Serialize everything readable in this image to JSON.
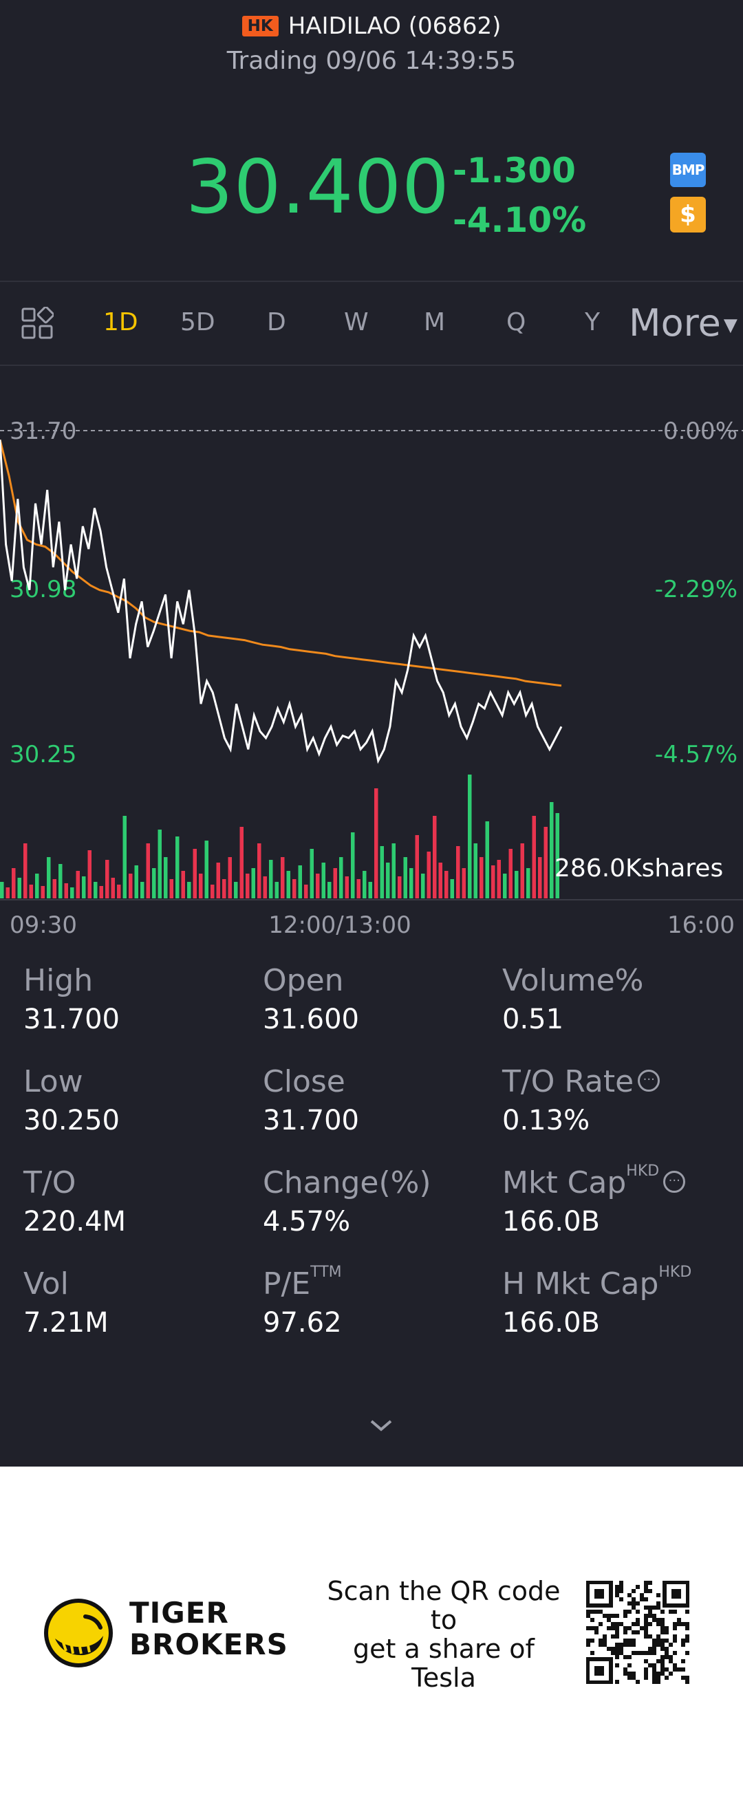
{
  "header": {
    "market": "HK",
    "stock_name": "HAIDILAO (06862)",
    "status": "Trading 09/06 14:39:55"
  },
  "quote": {
    "price": "30.400",
    "change": "-1.300",
    "change_pct": "-4.10%",
    "bmp_label": "BMP",
    "dollar_label": "$"
  },
  "tabs": {
    "items": [
      "1D",
      "5D",
      "D",
      "W",
      "M",
      "Q",
      "Y"
    ],
    "active": "1D",
    "more": "More"
  },
  "chart_data": {
    "type": "line",
    "y_left_labels": [
      "31.70",
      "30.98",
      "30.25"
    ],
    "y_right_labels": [
      "0.00%",
      "-2.29%",
      "-4.57%"
    ],
    "x_labels": [
      "09:30",
      "12:00/13:00",
      "16:00"
    ],
    "volume_label": "286.0Kshares",
    "ylim": [
      30.25,
      31.7
    ],
    "series": [
      {
        "values": [
          31.66,
          31.2,
          31.04,
          31.4,
          31.1,
          31.0,
          31.38,
          31.2,
          31.44,
          31.1,
          31.3,
          31.0,
          31.2,
          31.05,
          31.28,
          31.18,
          31.36,
          31.26,
          31.1,
          31.0,
          30.9,
          31.05,
          30.7,
          30.85,
          30.95,
          30.75,
          30.82,
          30.9,
          30.98,
          30.7,
          30.95,
          30.85,
          31.0,
          30.8,
          30.5,
          30.6,
          30.55,
          30.45,
          30.35,
          30.3,
          30.5,
          30.4,
          30.3,
          30.45,
          30.38,
          30.35,
          30.4,
          30.48,
          30.42,
          30.5,
          30.4,
          30.45,
          30.3,
          30.35,
          30.28,
          30.35,
          30.4,
          30.32,
          30.36,
          30.35,
          30.38,
          30.3,
          30.33,
          30.38,
          30.25,
          30.3,
          30.4,
          30.6,
          30.55,
          30.65,
          30.8,
          30.75,
          30.8,
          30.7,
          30.6,
          30.55,
          30.45,
          30.5,
          30.4,
          30.35,
          30.42,
          30.5,
          30.48,
          30.55,
          30.5,
          30.45,
          30.55,
          30.5,
          30.55,
          30.45,
          30.5,
          30.4,
          30.35,
          30.3,
          30.35,
          30.4
        ]
      },
      {
        "values": [
          31.66,
          31.5,
          31.3,
          31.22,
          31.2,
          31.19,
          31.16,
          31.12,
          31.08,
          31.05,
          31.02,
          31.0,
          30.99,
          30.97,
          30.95,
          30.92,
          30.88,
          30.86,
          30.85,
          30.84,
          30.83,
          30.82,
          30.815,
          30.8,
          30.795,
          30.79,
          30.785,
          30.78,
          30.77,
          30.76,
          30.755,
          30.75,
          30.74,
          30.735,
          30.73,
          30.725,
          30.72,
          30.71,
          30.705,
          30.7,
          30.695,
          30.69,
          30.685,
          30.68,
          30.675,
          30.67,
          30.665,
          30.66,
          30.655,
          30.65,
          30.645,
          30.64,
          30.635,
          30.63,
          30.625,
          30.62,
          30.615,
          30.61,
          30.6,
          30.595,
          30.59,
          30.585,
          30.58
        ]
      }
    ],
    "volume": [
      12,
      8,
      22,
      15,
      40,
      10,
      18,
      9,
      30,
      14,
      25,
      11,
      8,
      20,
      16,
      35,
      12,
      9,
      28,
      15,
      10,
      60,
      18,
      24,
      12,
      40,
      22,
      50,
      30,
      14,
      45,
      20,
      12,
      36,
      18,
      42,
      10,
      26,
      14,
      30,
      12,
      52,
      18,
      22,
      40,
      16,
      28,
      12,
      30,
      20,
      14,
      24,
      10,
      36,
      18,
      26,
      12,
      22,
      30,
      16,
      48,
      14,
      20,
      12,
      80,
      38,
      26,
      40,
      16,
      30,
      22,
      46,
      18,
      34,
      60,
      26,
      20,
      14,
      38,
      22,
      90,
      40,
      30,
      56,
      24,
      28,
      18,
      36,
      20,
      40,
      22,
      60,
      30,
      52,
      70,
      62
    ]
  },
  "stats": {
    "high_label": "High",
    "high": "31.700",
    "open_label": "Open",
    "open": "31.600",
    "volpct_label": "Volume%",
    "volpct": "0.51",
    "low_label": "Low",
    "low": "30.250",
    "close_label": "Close",
    "close": "31.700",
    "torate_label": "T/O Rate",
    "torate": "0.13%",
    "to_label": "T/O",
    "to": "220.4M",
    "changepct_label": "Change(%)",
    "changepct": "4.57%",
    "mktcap_label": "Mkt Cap",
    "mktcap_sup": "HKD",
    "mktcap": "166.0B",
    "vol_label": "Vol",
    "vol": "7.21M",
    "pe_label": "P/E",
    "pe_sup": "TTM",
    "pe": "97.62",
    "hmktcap_label": "H Mkt Cap",
    "hmktcap_sup": "HKD",
    "hmktcap": "166.0B"
  },
  "promo": {
    "brand_line1": "TIGER",
    "brand_line2": "BROKERS",
    "scan_text_1": "Scan the QR code",
    "scan_text_2": "to",
    "scan_text_3": "get a share of",
    "scan_text_4": "Tesla"
  },
  "colors": {
    "up": "#2ecc71",
    "down": "#e8344e",
    "avg_line": "#f08a1c",
    "active_tab": "#f5c400"
  }
}
